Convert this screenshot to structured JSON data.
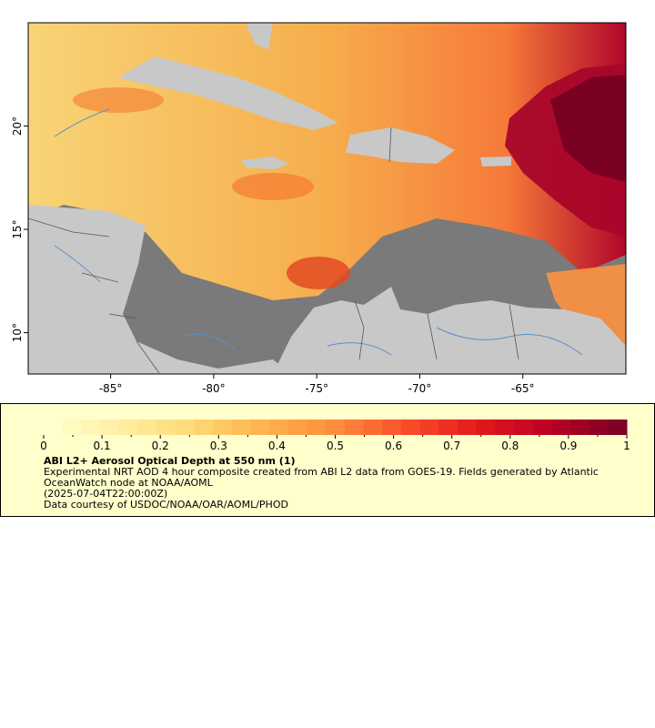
{
  "map": {
    "x_ticks": [
      {
        "lon": -85,
        "label": "-85°"
      },
      {
        "lon": -80,
        "label": "-80°"
      },
      {
        "lon": -75,
        "label": "-75°"
      },
      {
        "lon": -70,
        "label": "-70°"
      },
      {
        "lon": -65,
        "label": "-65°"
      }
    ],
    "y_ticks": [
      {
        "lat": 20,
        "label": "20°"
      },
      {
        "lat": 15,
        "label": "15°"
      },
      {
        "lat": 10,
        "label": "10°"
      }
    ],
    "lon_range": [
      -89,
      -60
    ],
    "lat_range": [
      8,
      25
    ],
    "colors": {
      "ocean_nodata": "#7a7a7a",
      "land": "#c8c8c8",
      "borders": "#555555",
      "rivers": "#5b8fc8",
      "frame": "#000000"
    }
  },
  "colorbar": {
    "min": 0,
    "max": 1,
    "tick_labels": [
      "0",
      "0.1",
      "0.2",
      "0.3",
      "0.4",
      "0.5",
      "0.6",
      "0.7",
      "0.8",
      "0.9",
      "1"
    ],
    "colors": [
      "#ffffcc",
      "#ffeda0",
      "#fed976",
      "#feb24c",
      "#fd8d3c",
      "#fc4e2a",
      "#e31a1c",
      "#bd0026",
      "#800026"
    ]
  },
  "legend": {
    "title": "ABI L2+ Aerosol Optical Depth at 550 nm (1)",
    "description": "Experimental NRT AOD 4 hour composite created from ABI L2 data from GOES-19. Fields generated by Atlantic OceanWatch node at NOAA/AOML",
    "time": "(2025-07-04T22:00:00Z)",
    "credit": "Data courtesy of USDOC/NOAA/OAR/AOML/PHOD"
  }
}
